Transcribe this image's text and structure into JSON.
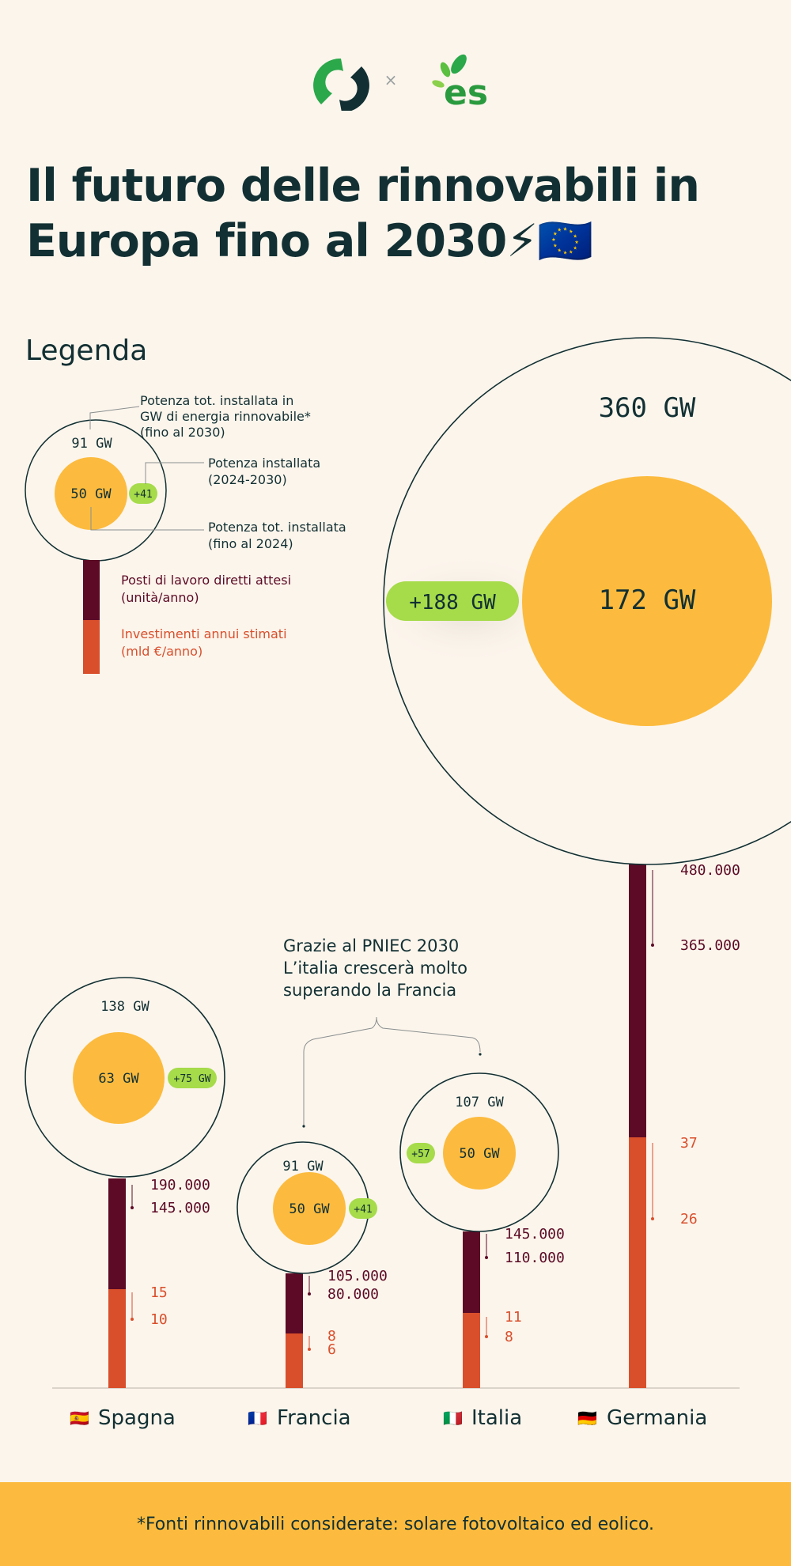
{
  "header": {
    "logo_separator": "×",
    "partner_logo_text": "es",
    "title_line1": "Il futuro delle rinnovabili in",
    "title_line2": "Europa fino al 2030⚡🇪🇺"
  },
  "legend": {
    "heading": "Legenda",
    "example_total": "91 GW",
    "example_base": "50 GW",
    "example_added": "+41",
    "label_total": [
      "Potenza tot. installata  in",
      "GW di energia rinnovabile*",
      "(fino al 2030)"
    ],
    "label_added": [
      "Potenza installata",
      "(2024-2030)"
    ],
    "label_base": [
      "Potenza tot. installata",
      "(fino al 2024)"
    ],
    "label_jobs": [
      "Posti di lavoro diretti attesi",
      "(unità/anno)"
    ],
    "label_invest": [
      "Investimenti annui stimati",
      "(mld €/anno)"
    ]
  },
  "annotation": [
    "Grazie al PNIEC 2030",
    "L’italia crescerà molto",
    "superando la Francia"
  ],
  "footer": "*Fonti rinnovabili considerate: solare fotovoltaico ed eolico.",
  "colors": {
    "background": "#fcf5ec",
    "base_circle": "#fcbb3e",
    "added_badge": "#a6db4a",
    "jobs_bar": "#5c0a25",
    "invest_bar": "#d94f2b",
    "title": "#123033",
    "footer_band": "#fcbb3e"
  },
  "chart_data": {
    "type": "bubble-bar",
    "categories": [
      "Spagna",
      "Francia",
      "Italia",
      "Germania"
    ],
    "flags": [
      "🇪🇸",
      "🇫🇷",
      "🇮🇹",
      "🇩🇪"
    ],
    "units": {
      "capacity": "GW",
      "jobs": "unità/anno",
      "investments": "mld €/anno"
    },
    "series": [
      {
        "name": "Potenza tot. installata (fino al 2030)",
        "values": [
          138,
          91,
          107,
          360
        ]
      },
      {
        "name": "Potenza tot. installata (fino al 2024)",
        "values": [
          63,
          50,
          50,
          172
        ]
      },
      {
        "name": "Potenza installata (2024-2030)",
        "values": [
          75,
          41,
          57,
          188
        ]
      },
      {
        "name": "Posti di lavoro diretti attesi",
        "ranges": [
          [
            145000,
            190000
          ],
          [
            80000,
            105000
          ],
          [
            110000,
            145000
          ],
          [
            365000,
            480000
          ]
        ]
      },
      {
        "name": "Investimenti annui stimati",
        "ranges": [
          [
            10,
            15
          ],
          [
            6,
            8
          ],
          [
            8,
            11
          ],
          [
            26,
            37
          ]
        ]
      }
    ],
    "labels": {
      "total": [
        "138 GW",
        "91 GW",
        "107 GW",
        "360 GW"
      ],
      "base": [
        "63 GW",
        "50 GW",
        "50 GW",
        "172 GW"
      ],
      "added": [
        "+75 GW",
        "+41",
        "+57",
        "+188 GW"
      ],
      "jobs_max": [
        "190.000",
        "105.000",
        "145.000",
        "480.000"
      ],
      "jobs_min": [
        "145.000",
        "80.000",
        "110.000",
        "365.000"
      ],
      "invest_max": [
        "15",
        "8",
        "11",
        "37"
      ],
      "invest_min": [
        "10",
        "6",
        "8",
        "26"
      ]
    }
  }
}
